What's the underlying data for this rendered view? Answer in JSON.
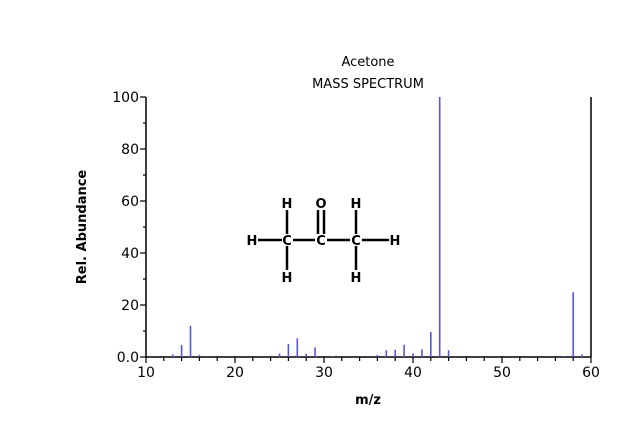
{
  "chart_data": {
    "type": "bar",
    "title": "Acetone",
    "subtitle": "MASS SPECTRUM",
    "xlabel": "m/z",
    "ylabel": "Rel. Abundance",
    "xlim": [
      10,
      60
    ],
    "ylim": [
      0,
      100
    ],
    "xticks": [
      "10",
      "20",
      "30",
      "40",
      "50",
      "60"
    ],
    "yticks": [
      "0.0",
      "20",
      "40",
      "60",
      "80",
      "100"
    ],
    "grid": false,
    "bar_color": "#5555dd",
    "x": [
      13,
      14,
      15,
      16,
      25,
      26,
      27,
      28,
      29,
      31,
      36,
      37,
      38,
      39,
      40,
      41,
      42,
      43,
      44,
      57,
      58,
      59
    ],
    "values": [
      1.0,
      4.6,
      12.0,
      0.8,
      1.3,
      5.0,
      7.2,
      1.3,
      3.7,
      0.3,
      0.8,
      2.6,
      2.8,
      4.7,
      1.4,
      2.9,
      9.6,
      100,
      2.6,
      0.4,
      24.9,
      1.0
    ]
  },
  "structure": {
    "atoms": [
      "H",
      "C",
      "C",
      "C",
      "H",
      "H",
      "O",
      "H",
      "H",
      "H"
    ]
  }
}
